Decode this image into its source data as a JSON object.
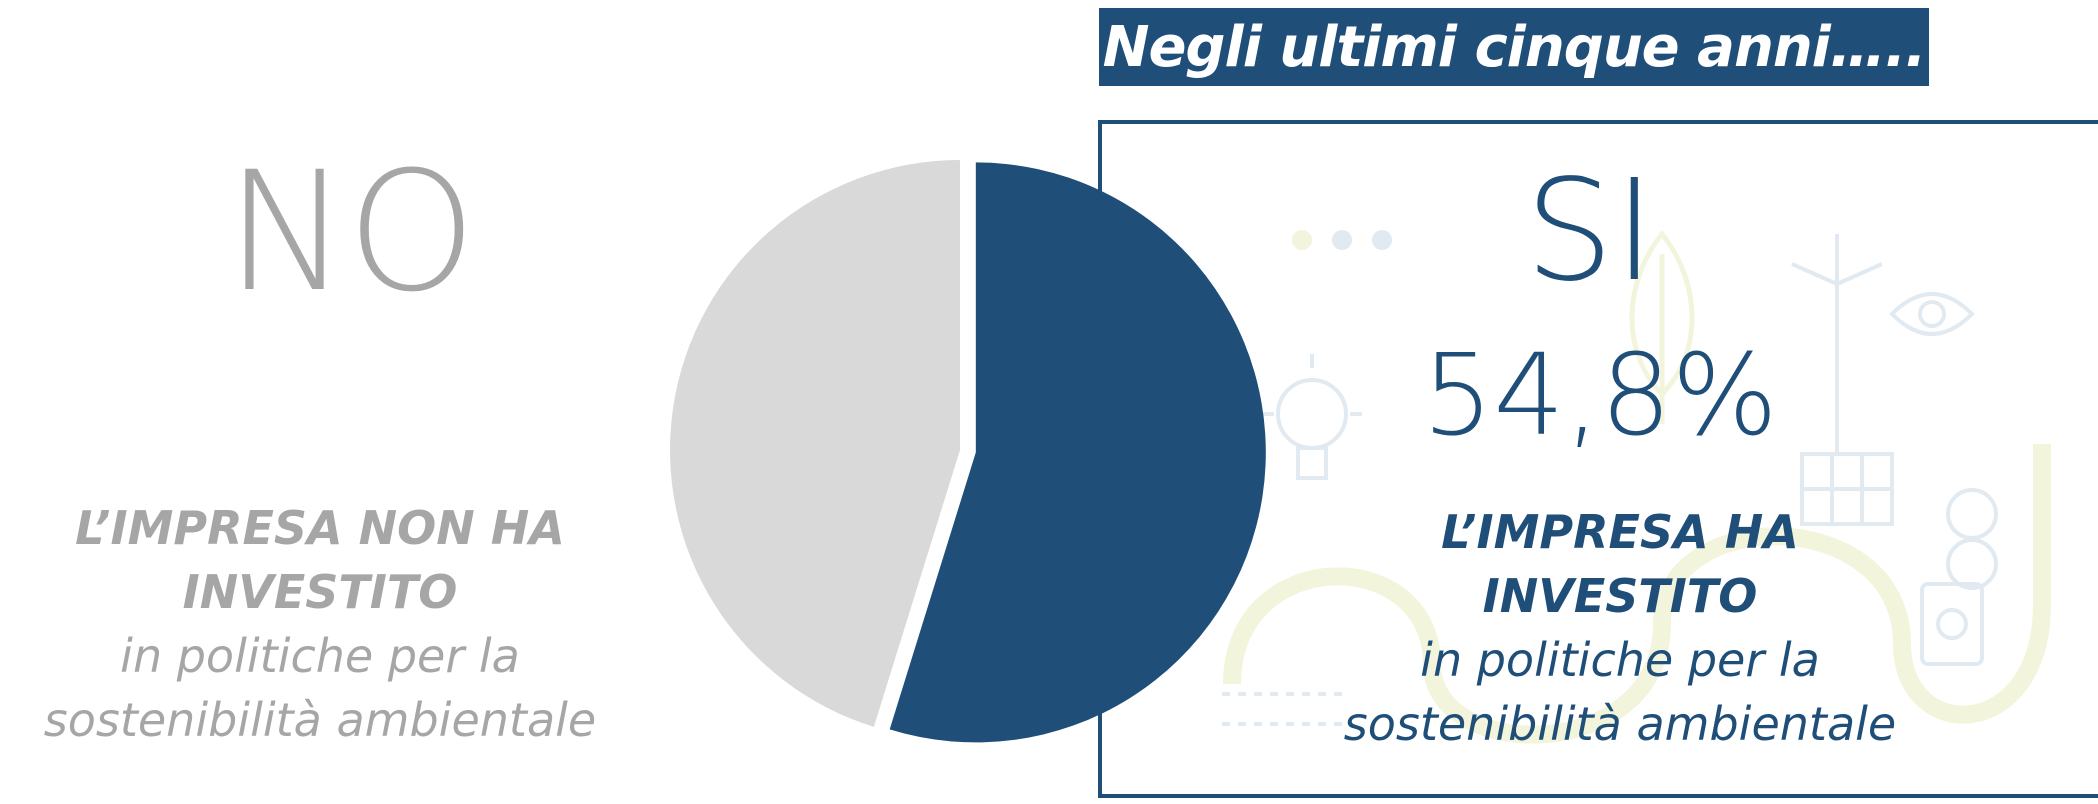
{
  "header": {
    "text": "Negli ultimi cinque anni…..",
    "bg_color": "#1f4e79",
    "text_color": "#ffffff"
  },
  "colors": {
    "si": "#1f4e79",
    "no": "#d9d9d9",
    "no_text": "#a6a6a6",
    "box_border": "#1f4e79",
    "art": "#c9d8e6",
    "art_accent": "#e8edbf"
  },
  "no_side": {
    "label": "NO",
    "caption_strong_line1": "L’IMPRESA NON HA",
    "caption_strong_line2": "INVESTITO",
    "caption_line1": "in politiche per la",
    "caption_line2": "sostenibilità ambientale"
  },
  "si_side": {
    "label": "SI",
    "value_label": "54,8%",
    "caption_strong_line1": "L’IMPRESA HA",
    "caption_strong_line2": "INVESTITO",
    "caption_line1": "in politiche per la",
    "caption_line2": "sostenibilità ambientale"
  },
  "chart_data": {
    "type": "pie",
    "title": "",
    "slices": [
      {
        "name": "SI",
        "value": 54.8,
        "color": "#1f4e79",
        "exploded": true
      },
      {
        "name": "NO",
        "value": 45.2,
        "color": "#d9d9d9",
        "exploded": false
      }
    ],
    "start_angle_deg": 0,
    "direction": "clockwise",
    "legend": "none"
  }
}
